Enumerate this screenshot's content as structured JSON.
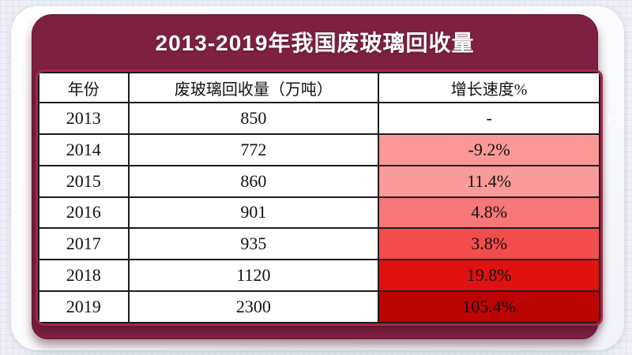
{
  "page": {
    "title": "2013-2019年我国废玻璃回收量"
  },
  "colors": {
    "panel_maroon": "#7e2042",
    "card_border_crimson": "#a82544",
    "grid_line_black": "#1c1c1c",
    "growth_scale": [
      "#ffffff",
      "#fa9898",
      "#fa9a9a",
      "#f67878",
      "#f24c4c",
      "#e01111",
      "#bd0404"
    ]
  },
  "table": {
    "columns": [
      "年份",
      "废玻璃回收量（万吨）",
      "增长速度%"
    ],
    "rows": [
      {
        "year": "2013",
        "volume": "850",
        "growth": "-",
        "growth_bg": "#ffffff"
      },
      {
        "year": "2014",
        "volume": "772",
        "growth": "-9.2%",
        "growth_bg": "#fa9898"
      },
      {
        "year": "2015",
        "volume": "860",
        "growth": "11.4%",
        "growth_bg": "#fa9a9a"
      },
      {
        "year": "2016",
        "volume": "901",
        "growth": "4.8%",
        "growth_bg": "#f67878"
      },
      {
        "year": "2017",
        "volume": "935",
        "growth": "3.8%",
        "growth_bg": "#f24c4c"
      },
      {
        "year": "2018",
        "volume": "1120",
        "growth": "19.8%",
        "growth_bg": "#e01111"
      },
      {
        "year": "2019",
        "volume": "2300",
        "growth": "105.4%",
        "growth_bg": "#bd0404"
      }
    ]
  },
  "chart_data": {
    "type": "table",
    "title": "2013-2019年我国废玻璃回收量",
    "columns": [
      "年份",
      "废玻璃回收量（万吨）",
      "增长速度%"
    ],
    "rows": [
      [
        "2013",
        850,
        null
      ],
      [
        "2014",
        772,
        -9.2
      ],
      [
        "2015",
        860,
        11.4
      ],
      [
        "2016",
        901,
        4.8
      ],
      [
        "2017",
        935,
        3.8
      ],
      [
        "2018",
        1120,
        19.8
      ],
      [
        "2019",
        2300,
        105.4
      ]
    ],
    "notes": "增长速度 column uses a red heat scale: light pink (2014) deepening to dark red (2019); 2013 has no value (dash)."
  }
}
